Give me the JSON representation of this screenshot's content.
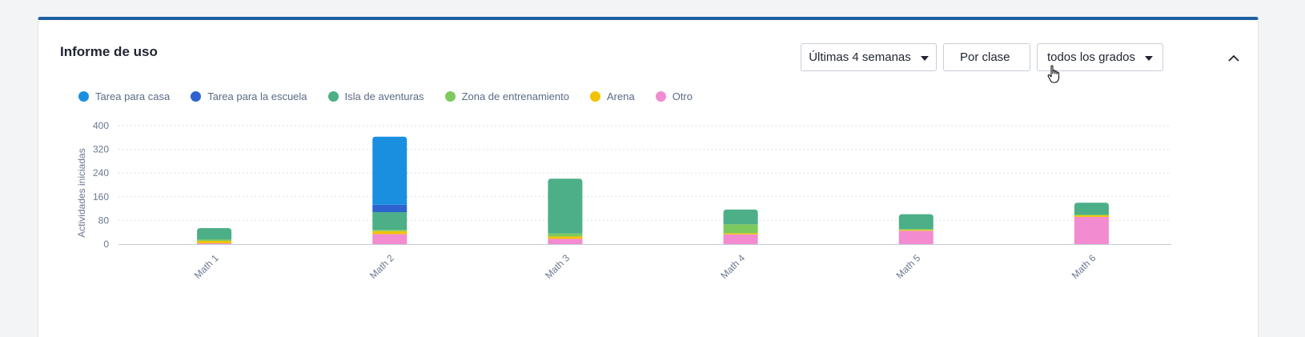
{
  "card": {
    "title": "Informe de uso",
    "controls": {
      "range_label": "Últimas 4 semanas",
      "group_label": "Por clase",
      "grade_label": "todos los grados"
    },
    "icons": [
      "caret-down-icon",
      "chevron-up-icon",
      "hand-pointer-icon"
    ],
    "accent_color": "#1e5fa3"
  },
  "chart_data": {
    "type": "bar",
    "stacked": true,
    "categories": [
      "Math 1",
      "Math 2",
      "Math 3",
      "Math 4",
      "Math 5",
      "Math 6"
    ],
    "ylabel": "Actividades iniciadas",
    "xlabel": "",
    "ylim": [
      0,
      400
    ],
    "yticks": [
      0,
      80,
      160,
      240,
      320,
      400
    ],
    "grid": true,
    "legend_position": "top-left",
    "series": [
      {
        "name": "Otro",
        "color": "#f28bd0",
        "values": [
          3,
          34,
          18,
          33,
          45,
          92
        ]
      },
      {
        "name": "Arena",
        "color": "#f2c200",
        "values": [
          8,
          10,
          8,
          4,
          3,
          5
        ]
      },
      {
        "name": "Zona de entrenamiento",
        "color": "#7dc95e",
        "values": [
          5,
          4,
          10,
          30,
          3,
          3
        ]
      },
      {
        "name": "Isla de aventuras",
        "color": "#4caf87",
        "values": [
          38,
          60,
          185,
          50,
          50,
          40
        ]
      },
      {
        "name": "Tarea para la escuela",
        "color": "#2e63cf",
        "values": [
          0,
          25,
          0,
          0,
          0,
          0
        ]
      },
      {
        "name": "Tarea para casa",
        "color": "#1a8fe0",
        "values": [
          0,
          230,
          0,
          0,
          0,
          0
        ]
      }
    ],
    "legend_order": [
      "Tarea para casa",
      "Tarea para la escuela",
      "Isla de aventuras",
      "Zona de entrenamiento",
      "Arena",
      "Otro"
    ]
  }
}
